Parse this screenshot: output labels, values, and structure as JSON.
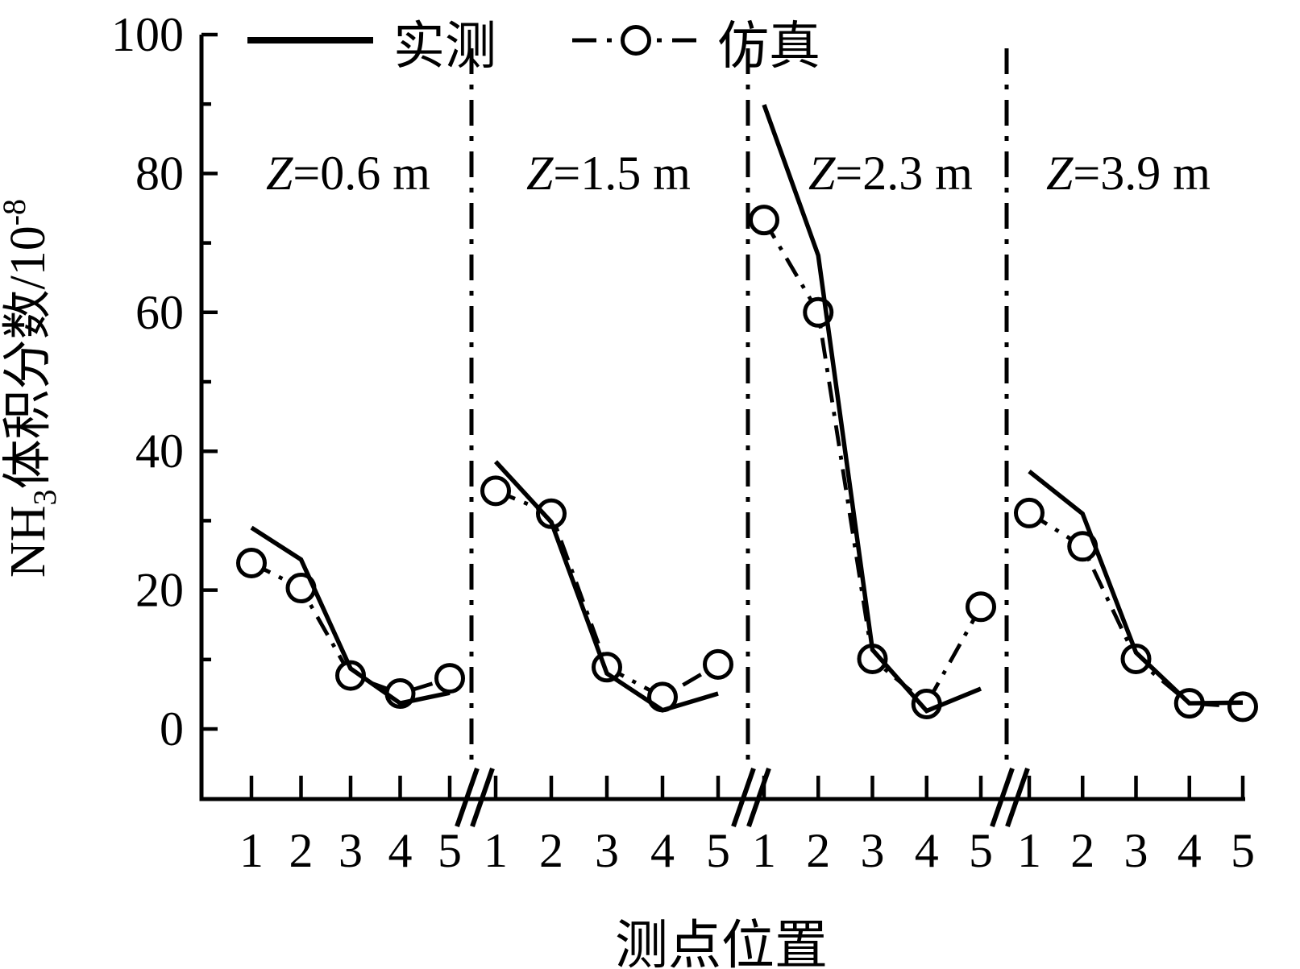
{
  "chart_data": {
    "type": "line",
    "title": "",
    "xlabel": "测点位置",
    "ylabel": "NH3体积分数/10-8",
    "ylabel_parts": {
      "prefix": "NH",
      "sub": "3",
      "body": "体积分数/10",
      "sup": "-8"
    },
    "ylim": [
      -10,
      100
    ],
    "yticks_major": [
      0,
      20,
      40,
      60,
      80,
      100
    ],
    "yticks_minor": [
      10,
      30,
      50,
      70,
      90
    ],
    "x_categories": [
      "1",
      "2",
      "3",
      "4",
      "5"
    ],
    "grid": "off",
    "legend_position": "top",
    "legend": [
      {
        "name": "实测",
        "style": "solid-line"
      },
      {
        "name": "仿真",
        "style": "dash-dot-open-circle"
      }
    ],
    "axis_breaks": "double-slash between panels on x-axis",
    "separator_style": "vertical dash-dot lines between panels",
    "panels": [
      {
        "label": "Z=0.6 m",
        "x": [
          1,
          2,
          3,
          4,
          5
        ],
        "series": [
          {
            "name": "实测",
            "values": [
              29.0,
              24.4,
              8.7,
              3.7,
              5.2
            ]
          },
          {
            "name": "仿真",
            "values": [
              23.9,
              20.3,
              7.7,
              5.1,
              7.3
            ]
          }
        ]
      },
      {
        "label": "Z=1.5 m",
        "x": [
          1,
          2,
          3,
          4,
          5
        ],
        "series": [
          {
            "name": "实测",
            "values": [
              38.5,
              29.8,
              8.0,
              2.7,
              5.1
            ]
          },
          {
            "name": "仿真",
            "values": [
              34.3,
              31.0,
              8.9,
              4.6,
              9.3
            ]
          }
        ]
      },
      {
        "label": "Z=2.3 m",
        "x": [
          1,
          2,
          3,
          4,
          5
        ],
        "series": [
          {
            "name": "实测",
            "values": [
              89.9,
              68.2,
              11.4,
              2.6,
              5.8
            ]
          },
          {
            "name": "仿真",
            "values": [
              73.3,
              60.0,
              10.1,
              3.6,
              17.6
            ]
          }
        ]
      },
      {
        "label": "Z=3.9 m",
        "x": [
          1,
          2,
          3,
          4,
          5
        ],
        "series": [
          {
            "name": "实测",
            "values": [
              37.1,
              31.0,
              11.0,
              3.7,
              3.8
            ]
          },
          {
            "name": "仿真",
            "values": [
              31.1,
              26.3,
              10.1,
              3.7,
              3.2
            ]
          }
        ]
      }
    ],
    "colors": {
      "line": "#000000",
      "background": "#ffffff"
    }
  }
}
